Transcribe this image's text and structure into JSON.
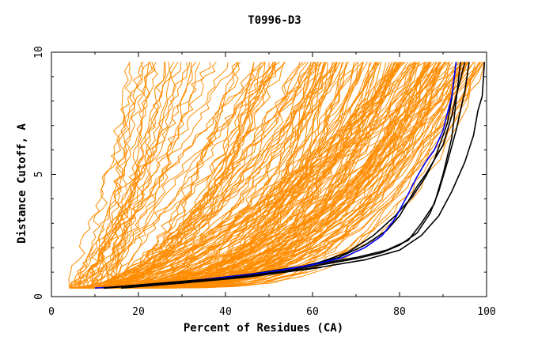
{
  "chart_data": {
    "type": "line",
    "title": "T0996-D3",
    "xlabel": "Percent of Residues (CA)",
    "ylabel": "Distance Cutoff, A",
    "xlim": [
      0,
      100
    ],
    "ylim": [
      0,
      10
    ],
    "x_ticks": [
      "0",
      "20",
      "40",
      "60",
      "80",
      "100"
    ],
    "y_ticks": [
      "0",
      "5",
      "10"
    ],
    "grid": false,
    "legend": "none",
    "colors": {
      "background": "#ffffff",
      "axis": "#000000",
      "bundle": "#ff8c00",
      "highlight_black": "#000000",
      "highlight_blue": "#0000ff"
    },
    "series": [
      {
        "color": "#000000",
        "x": [
          12,
          20,
          30,
          40,
          50,
          60,
          70,
          77,
          82,
          85,
          88,
          90,
          92,
          93,
          94
        ],
        "y": [
          0.35,
          0.45,
          0.6,
          0.8,
          1.0,
          1.3,
          1.6,
          1.9,
          2.3,
          3.0,
          3.8,
          5.0,
          6.5,
          8.0,
          9.6
        ]
      },
      {
        "color": "#000000",
        "x": [
          15,
          25,
          35,
          45,
          55,
          62,
          70,
          76,
          80,
          84,
          87,
          89,
          91,
          93,
          95,
          96
        ],
        "y": [
          0.4,
          0.55,
          0.7,
          0.9,
          1.1,
          1.3,
          1.55,
          1.8,
          2.1,
          2.6,
          3.4,
          4.3,
          5.5,
          6.8,
          8.4,
          9.6
        ]
      },
      {
        "color": "#000000",
        "x": [
          18,
          30,
          45,
          58,
          66,
          72,
          77,
          80,
          82,
          84,
          86,
          88,
          89,
          90,
          91,
          92,
          93
        ],
        "y": [
          0.4,
          0.6,
          0.9,
          1.25,
          1.6,
          2.1,
          2.7,
          3.3,
          3.9,
          4.5,
          5.0,
          5.6,
          6.1,
          6.6,
          7.1,
          8.1,
          9.6
        ]
      },
      {
        "color": "#000000",
        "x": [
          20,
          35,
          50,
          60,
          68,
          74,
          79,
          83,
          86,
          88,
          90,
          91,
          92,
          93,
          95
        ],
        "y": [
          0.45,
          0.7,
          1.0,
          1.3,
          1.8,
          2.5,
          3.3,
          4.1,
          4.9,
          5.6,
          6.2,
          6.8,
          7.4,
          8.2,
          9.6
        ]
      },
      {
        "color": "#000000",
        "x": [
          16,
          30,
          45,
          60,
          72,
          80,
          85,
          89,
          92,
          95,
          97,
          98,
          99,
          99.5
        ],
        "y": [
          0.35,
          0.55,
          0.8,
          1.15,
          1.5,
          1.9,
          2.5,
          3.3,
          4.3,
          5.5,
          6.6,
          7.6,
          8.2,
          9.6
        ]
      },
      {
        "color": "#0000ff",
        "x": [
          10,
          20,
          30,
          40,
          50,
          60,
          67,
          72,
          76,
          79,
          82,
          84,
          86,
          88,
          90,
          92,
          93
        ],
        "y": [
          0.35,
          0.45,
          0.6,
          0.8,
          1.0,
          1.3,
          1.6,
          2.0,
          2.5,
          3.2,
          4.2,
          4.9,
          5.5,
          6.0,
          6.8,
          8.2,
          9.6
        ]
      }
    ]
  }
}
